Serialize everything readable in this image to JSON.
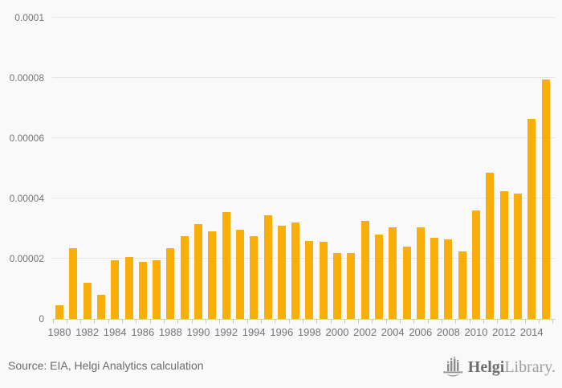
{
  "chart_data": {
    "type": "bar",
    "title": "",
    "xlabel": "",
    "ylabel": "",
    "categories": [
      "1980",
      "1981",
      "1982",
      "1983",
      "1984",
      "1985",
      "1986",
      "1987",
      "1988",
      "1989",
      "1990",
      "1991",
      "1992",
      "1993",
      "1994",
      "1995",
      "1996",
      "1997",
      "1998",
      "1999",
      "2000",
      "2001",
      "2002",
      "2003",
      "2004",
      "2005",
      "2006",
      "2007",
      "2008",
      "2009",
      "2010",
      "2011",
      "2012",
      "2013",
      "2014",
      "2015"
    ],
    "values": [
      4.5e-06,
      2.35e-05,
      1.2e-05,
      8e-06,
      1.95e-05,
      2.05e-05,
      1.9e-05,
      1.95e-05,
      2.35e-05,
      2.75e-05,
      3.15e-05,
      2.9e-05,
      3.55e-05,
      2.95e-05,
      2.75e-05,
      3.45e-05,
      3.1e-05,
      3.2e-05,
      2.6e-05,
      2.55e-05,
      2.2e-05,
      2.2e-05,
      3.25e-05,
      2.8e-05,
      3.05e-05,
      2.4e-05,
      3.05e-05,
      2.7e-05,
      2.65e-05,
      2.25e-05,
      3.6e-05,
      4.85e-05,
      4.25e-05,
      4.15e-05,
      6.65e-05,
      7.95e-05
    ],
    "ylim": [
      0,
      0.0001
    ],
    "ytick_values": [
      0,
      2e-05,
      4e-05,
      6e-05,
      8e-05,
      0.0001
    ],
    "ytick_labels": [
      "0",
      "0.00002",
      "0.00004",
      "0.00006",
      "0.00008",
      "0.0001"
    ],
    "xtick_label_every": 2,
    "xtick_labels": [
      "1980",
      "1982",
      "1984",
      "1986",
      "1988",
      "1990",
      "1992",
      "1994",
      "1996",
      "1998",
      "2000",
      "2002",
      "2004",
      "2006",
      "2008",
      "2010",
      "2012",
      "2014"
    ],
    "grid": true,
    "legend": "none",
    "bar_color": "#FAAE09",
    "grid_color": "#e6e6e6",
    "axis_color": "#c6cfe2",
    "tick_label_color": "#757575"
  },
  "footer": {
    "source_text": "Source: EIA, Helgi Analytics calculation",
    "logo": {
      "icon": "bar-chart-ship-icon",
      "brand_bold": "Helgi",
      "brand_light": "Library."
    }
  }
}
